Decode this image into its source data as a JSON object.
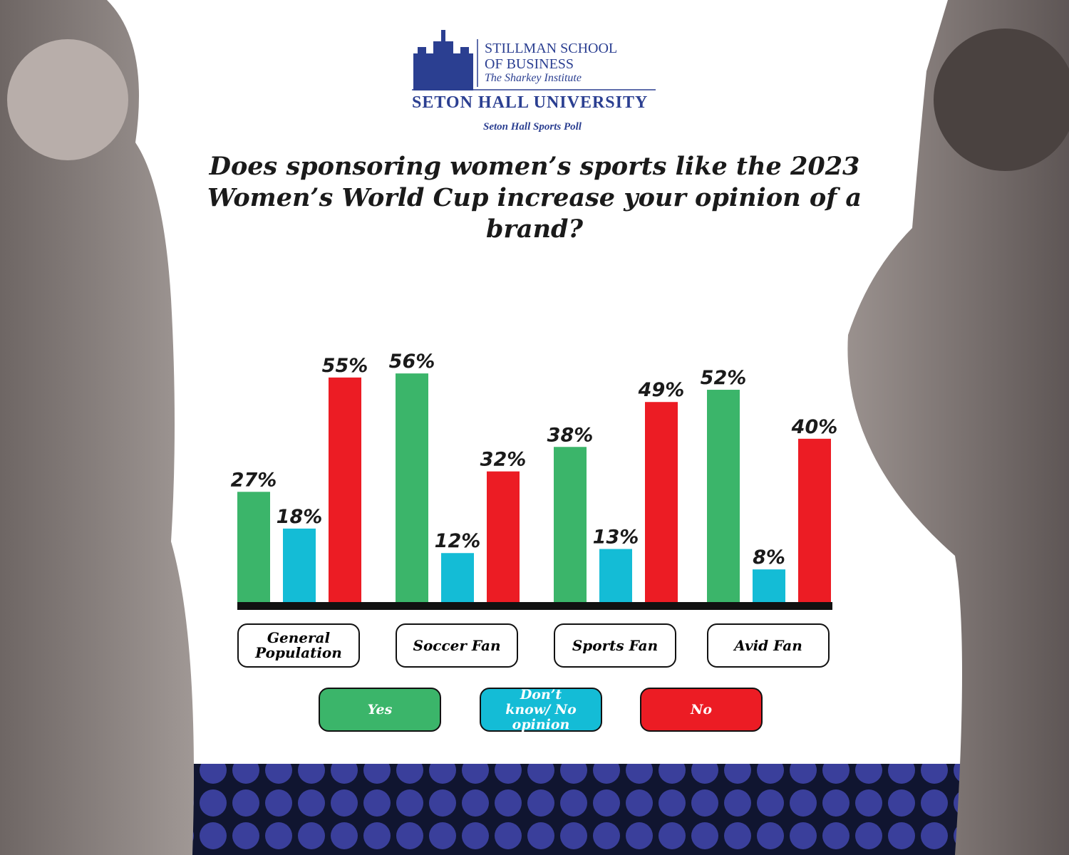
{
  "branding": {
    "school_line1": "STILLMAN SCHOOL",
    "school_line2": "OF BUSINESS",
    "institute": "The Sharkey Institute",
    "university": "SETON HALL UNIVERSITY",
    "poll": "Seton Hall Sports Poll"
  },
  "chart_data": {
    "type": "bar",
    "title": "Does sponsoring women’s sports like the 2023 Women’s World Cup increase your opinion of a brand?",
    "categories": [
      "General Population",
      "Soccer Fan",
      "Sports Fan",
      "Avid Fan"
    ],
    "series": [
      {
        "name": "Yes",
        "color": "#3bb56a",
        "values": [
          27,
          56,
          38,
          52
        ],
        "value_labels": [
          "27%",
          "56%",
          "38%",
          "52%"
        ]
      },
      {
        "name": "Don’t know/ No opinion",
        "color": "#14bcd6",
        "values": [
          18,
          12,
          13,
          8
        ],
        "value_labels": [
          "18%",
          "12%",
          "13%",
          "8%"
        ]
      },
      {
        "name": "No",
        "color": "#ec1c24",
        "values": [
          55,
          32,
          49,
          40
        ],
        "value_labels": [
          "55%",
          "32%",
          "49%",
          "40%"
        ]
      }
    ]
  }
}
